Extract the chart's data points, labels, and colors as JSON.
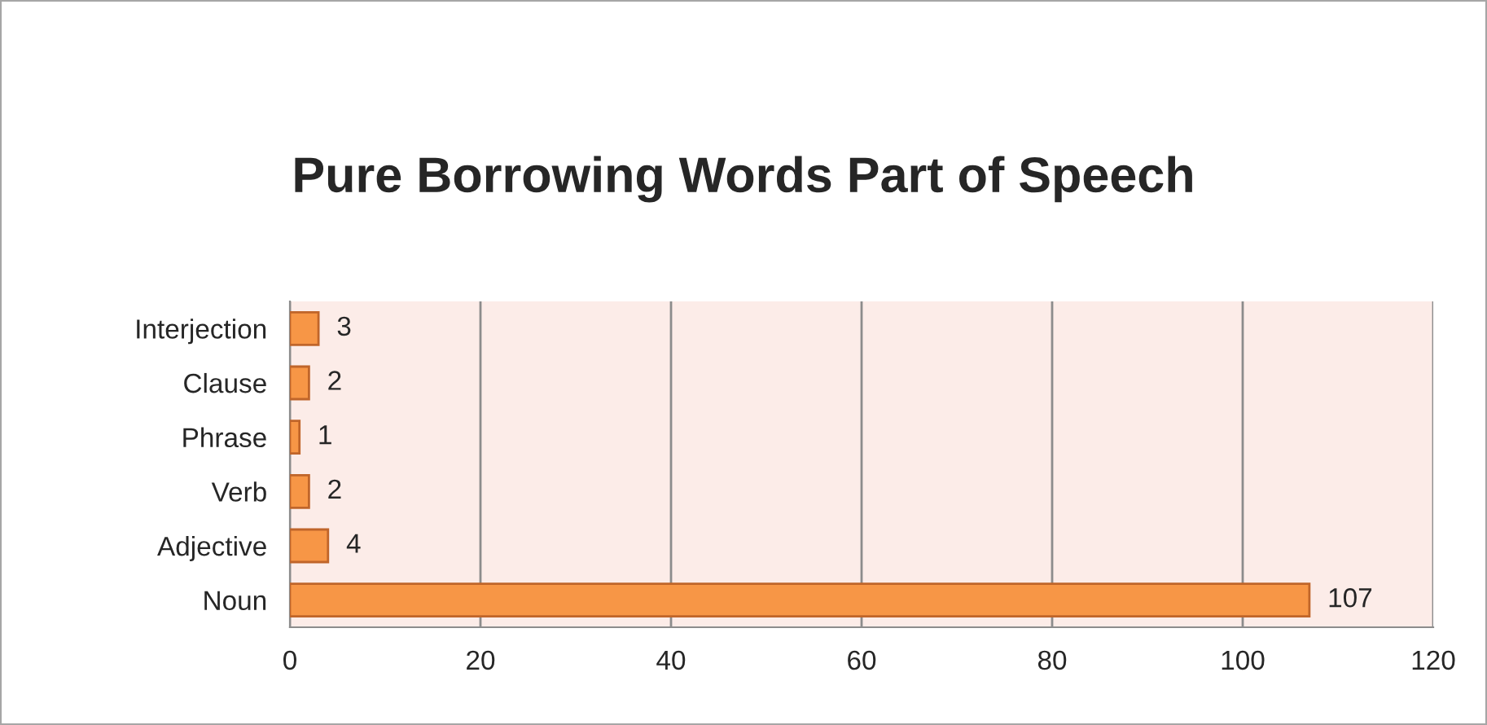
{
  "chart_data": {
    "type": "bar",
    "orientation": "horizontal",
    "title": "Pure Borrowing Words Part of Speech",
    "categories": [
      "Interjection",
      "Clause",
      "Phrase",
      "Verb",
      "Adjective",
      "Noun"
    ],
    "values": [
      3,
      2,
      1,
      2,
      4,
      107
    ],
    "color": "#f79646",
    "xlim": [
      0,
      120
    ],
    "xticks": [
      0,
      20,
      40,
      60,
      80,
      100,
      120
    ],
    "grid": "x",
    "data_labels": true
  }
}
